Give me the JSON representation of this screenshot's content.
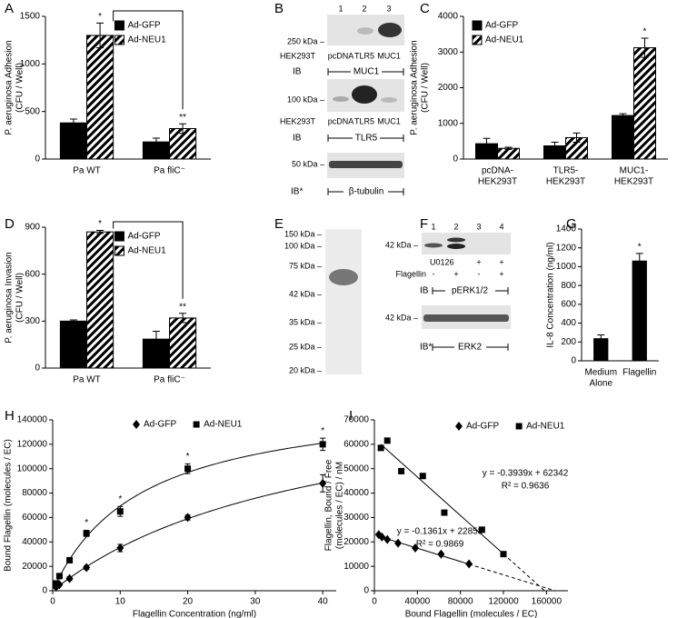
{
  "chart_data": [
    {
      "type": "bar",
      "panel": "A",
      "ylabel": [
        "P. aeruginosa Adhesion",
        "(CFU / Well)"
      ],
      "categories": [
        [
          "Pa WT"
        ],
        [
          "Pa fliC⁻"
        ]
      ],
      "series": [
        {
          "name": "Ad-GFP",
          "color": "#000000",
          "pattern": "solid",
          "values": [
            380,
            180
          ],
          "errors": [
            40,
            40
          ]
        },
        {
          "name": "Ad-NEU1",
          "color": "#000000",
          "pattern": "hatch",
          "values": [
            1300,
            320
          ],
          "errors": [
            130,
            50
          ],
          "significance": [
            "*",
            "**"
          ]
        }
      ],
      "ylim": [
        0,
        1500
      ],
      "yticks": [
        0,
        500,
        1000,
        1500
      ],
      "legend": "upper right",
      "bracket": true
    },
    {
      "type": "bar",
      "panel": "C",
      "ylabel": [
        "P. aeruginosa Adhesion",
        "(CFU / Well)"
      ],
      "categories": [
        [
          "pcDNA-",
          "HEK293T"
        ],
        [
          "TLR5-",
          "HEK293T"
        ],
        [
          "MUC1-",
          "HEK293T"
        ]
      ],
      "series": [
        {
          "name": "Ad-GFP",
          "color": "#000000",
          "pattern": "solid",
          "values": [
            430,
            370,
            1220
          ],
          "errors": [
            150,
            100,
            50
          ]
        },
        {
          "name": "Ad-NEU1",
          "color": "#000000",
          "pattern": "hatch",
          "values": [
            300,
            600,
            3120
          ],
          "errors": [
            30,
            130,
            270
          ],
          "significance": [
            null,
            null,
            "*"
          ]
        }
      ],
      "ylim": [
        0,
        4000
      ],
      "yticks": [
        0,
        1000,
        2000,
        3000,
        4000
      ],
      "legend": "upper left",
      "bracket": false
    },
    {
      "type": "bar",
      "panel": "D",
      "ylabel": [
        "P. aeruginosa Invasion",
        "(CFU / Well)"
      ],
      "categories": [
        [
          "Pa WT"
        ],
        [
          "Pa fliC⁻"
        ]
      ],
      "series": [
        {
          "name": "Ad-GFP",
          "color": "#000000",
          "pattern": "solid",
          "values": [
            300,
            185
          ],
          "errors": [
            8,
            50
          ]
        },
        {
          "name": "Ad-NEU1",
          "color": "#000000",
          "pattern": "hatch",
          "values": [
            870,
            320
          ],
          "errors": [
            10,
            30
          ],
          "significance": [
            "*",
            "**"
          ]
        }
      ],
      "ylim": [
        0,
        900
      ],
      "yticks": [
        0,
        300,
        600,
        900
      ],
      "legend": "upper right",
      "bracket": true
    },
    {
      "type": "bar",
      "panel": "G",
      "ylabel": [
        "IL-8 Concentration (ng/ml)"
      ],
      "categories": [
        [
          "Medium",
          "Alone"
        ],
        [
          "Flagellin"
        ]
      ],
      "series": [
        {
          "color": "#000000",
          "pattern": "solid",
          "values": [
            235,
            1060
          ],
          "errors": [
            40,
            80
          ],
          "significance": [
            null,
            "*"
          ]
        }
      ],
      "ylim": [
        0,
        1400
      ],
      "yticks": [
        0,
        200,
        400,
        600,
        800,
        1000,
        1200,
        1400
      ],
      "bracket": false
    },
    {
      "type": "scatter",
      "panel": "H",
      "ylabel": [
        "Bound Flagellin (molecules / EC)"
      ],
      "xlabel": "Flagellin Concentration (ng/ml)",
      "xlim": [
        0,
        42
      ],
      "xticks": [
        0,
        10,
        20,
        30,
        40
      ],
      "ylim": [
        0,
        140000
      ],
      "yticks": [
        0,
        20000,
        40000,
        60000,
        80000,
        100000,
        120000,
        140000
      ],
      "legend": "upper center",
      "fit": "hyperbola",
      "series": [
        {
          "name": "Ad-GFP",
          "color": "#000000",
          "marker": "diamond",
          "x": [
            0.5,
            1,
            2.5,
            5,
            10,
            20,
            40
          ],
          "values": [
            3000,
            5000,
            10000,
            19000,
            35000,
            60000,
            88000
          ],
          "errors": [
            1000,
            1000,
            1500,
            1500,
            3000,
            2000,
            7000
          ]
        },
        {
          "name": "Ad-NEU1",
          "color": "#000000",
          "marker": "square",
          "x": [
            0.5,
            1,
            2.5,
            5,
            10,
            20,
            40
          ],
          "values": [
            6000,
            12000,
            25000,
            47000,
            65000,
            100000,
            120000
          ],
          "errors": [
            2000,
            2000,
            2000,
            2500,
            4000,
            4000,
            5000
          ],
          "significance": [
            null,
            null,
            null,
            "*",
            "*",
            "*",
            "*"
          ]
        }
      ]
    },
    {
      "type": "scatter",
      "panel": "I",
      "ylabel": [
        "Flagellin, Bound / Free",
        "(molecules / EC) / nM"
      ],
      "xlabel": "Bound Flagellin (molecules / EC)",
      "xlim": [
        0,
        180000
      ],
      "xticks": [
        0,
        40000,
        80000,
        120000,
        160000
      ],
      "ylim": [
        0,
        70000
      ],
      "yticks": [
        0,
        10000,
        20000,
        30000,
        40000,
        50000,
        60000,
        70000
      ],
      "legend": "upper center",
      "series": [
        {
          "name": "Ad-GFP",
          "color": "#000000",
          "marker": "diamond",
          "x": [
            4000,
            7000,
            12000,
            22000,
            38000,
            62000,
            88000
          ],
          "values": [
            23000,
            22000,
            21000,
            19500,
            17500,
            15000,
            11000
          ],
          "trendline": {
            "slope": -0.1361,
            "intercept": 22858,
            "equation": "y = -0.1361x + 22858",
            "r_squared": "R² = 0.9869"
          }
        },
        {
          "name": "Ad-NEU1",
          "color": "#000000",
          "marker": "square",
          "x": [
            6000,
            12000,
            25000,
            45000,
            65000,
            100000,
            120000
          ],
          "values": [
            58500,
            61500,
            49000,
            47000,
            32000,
            25000,
            15000
          ],
          "trendline": {
            "slope": -0.3939,
            "intercept": 62342,
            "equation": "y = -0.3939x + 62342",
            "r_squared": "R² = 0.9636"
          }
        }
      ]
    }
  ],
  "blot_B": {
    "panel": "B",
    "lane_numbers": [
      "1",
      "2",
      "3"
    ],
    "blots": [
      {
        "marker": "250 kDa –",
        "cell_line": "HEK293T",
        "lanes": [
          "pcDNA",
          "TLR5",
          "MUC1"
        ],
        "ib": "IB",
        "antibody": "MUC1"
      },
      {
        "marker": "100 kDa –",
        "cell_line": "HEK293T",
        "lanes": [
          "pcDNA",
          "TLR5",
          "MUC1"
        ],
        "ib": "IB",
        "antibody": "TLR5"
      },
      {
        "marker": "50 kDa –",
        "ib": "IB*",
        "antibody": "β-tubulin"
      }
    ]
  },
  "blot_E": {
    "panel": "E",
    "markers": [
      "150 kDa –",
      "100 kDa –",
      "75 kDa –",
      "42 kDa –",
      "35 kDa –",
      "25 kDa –",
      "20 kDa –"
    ]
  },
  "blot_F": {
    "panel": "F",
    "lane_numbers": [
      "1",
      "2",
      "3",
      "4"
    ],
    "treatments": [
      {
        "name": "U0126",
        "signs": [
          null,
          null,
          "+",
          "+"
        ]
      },
      {
        "name": "Flagellin",
        "signs": [
          "-",
          "+",
          "-",
          "+"
        ]
      }
    ],
    "blots": [
      {
        "marker": "42 kDa –",
        "ib": "IB",
        "antibody": "pERK1/2"
      },
      {
        "marker": "42 kDa –",
        "ib": "IB*",
        "antibody": "ERK2"
      }
    ]
  }
}
